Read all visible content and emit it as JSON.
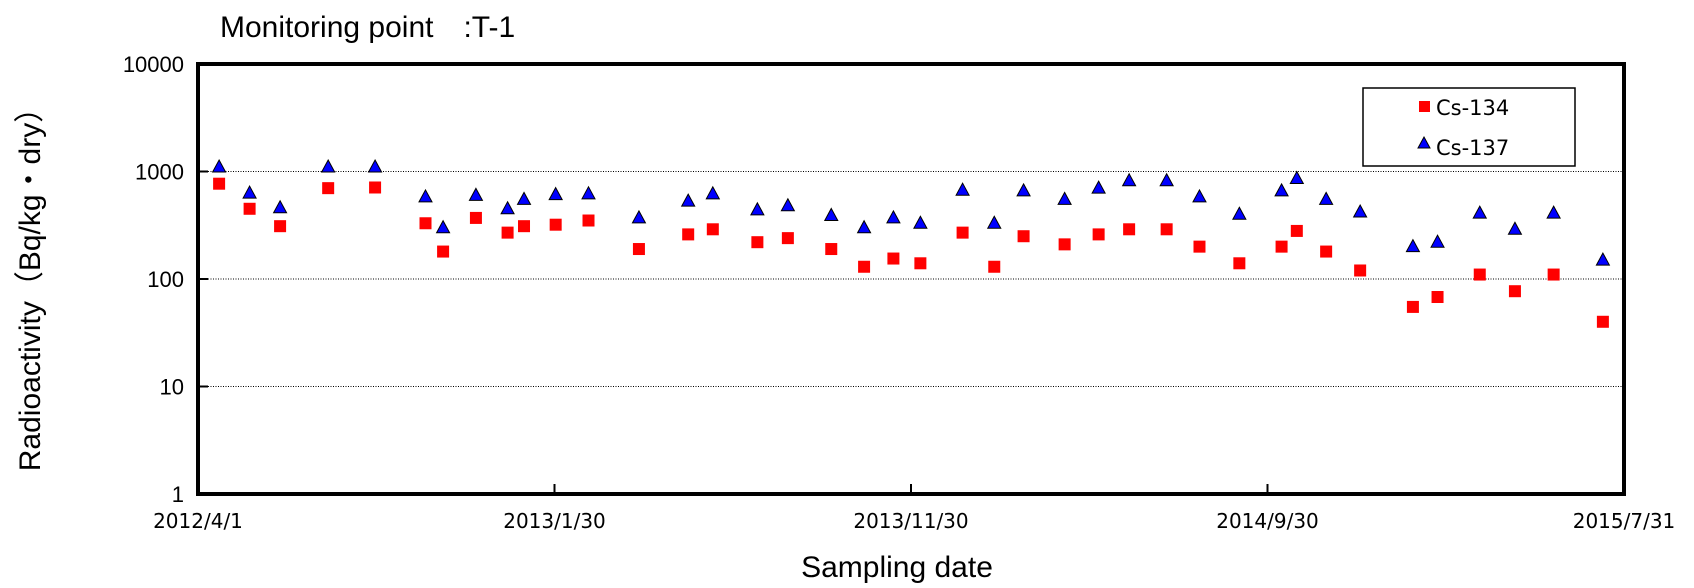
{
  "chart_data": {
    "type": "scatter",
    "title": "Monitoring point　:T-1",
    "xlabel": "Sampling date",
    "ylabel": "Radioactivity（Bq/kg・dry）",
    "x_axis": {
      "type": "date",
      "min": "2012-04-01",
      "max": "2015-07-31",
      "tick_values": [
        "2012-04-01",
        "2013-01-30",
        "2013-11-30",
        "2014-09-30",
        "2015-07-31"
      ],
      "tick_labels": [
        "2012/4/1",
        "2013/1/30",
        "2013/11/30",
        "2014/9/30",
        "2015/7/31"
      ]
    },
    "y_axis": {
      "scale": "log",
      "ylim": [
        1,
        10000
      ],
      "tick_values": [
        1,
        10,
        100,
        1000,
        10000
      ],
      "tick_labels": [
        "1",
        "10",
        "100",
        "1000",
        "10000"
      ],
      "grid": true
    },
    "legend": {
      "placement": "top-right"
    },
    "series": [
      {
        "name": "Cs-134",
        "marker": "square",
        "color": "#ff0000",
        "points": [
          {
            "x": "2012-04-19",
            "y": 770
          },
          {
            "x": "2012-05-15",
            "y": 450
          },
          {
            "x": "2012-06-10",
            "y": 310
          },
          {
            "x": "2012-07-21",
            "y": 700
          },
          {
            "x": "2012-08-30",
            "y": 710
          },
          {
            "x": "2012-10-12",
            "y": 330
          },
          {
            "x": "2012-10-27",
            "y": 180
          },
          {
            "x": "2012-11-24",
            "y": 370
          },
          {
            "x": "2012-12-21",
            "y": 270
          },
          {
            "x": "2013-01-04",
            "y": 310
          },
          {
            "x": "2013-01-31",
            "y": 320
          },
          {
            "x": "2013-02-28",
            "y": 350
          },
          {
            "x": "2013-04-12",
            "y": 190
          },
          {
            "x": "2013-05-24",
            "y": 260
          },
          {
            "x": "2013-06-14",
            "y": 290
          },
          {
            "x": "2013-07-22",
            "y": 220
          },
          {
            "x": "2013-08-17",
            "y": 240
          },
          {
            "x": "2013-09-23",
            "y": 190
          },
          {
            "x": "2013-10-21",
            "y": 130
          },
          {
            "x": "2013-11-15",
            "y": 155
          },
          {
            "x": "2013-12-08",
            "y": 140
          },
          {
            "x": "2014-01-13",
            "y": 270
          },
          {
            "x": "2014-02-09",
            "y": 130
          },
          {
            "x": "2014-03-06",
            "y": 250
          },
          {
            "x": "2014-04-10",
            "y": 210
          },
          {
            "x": "2014-05-09",
            "y": 260
          },
          {
            "x": "2014-06-04",
            "y": 290
          },
          {
            "x": "2014-07-06",
            "y": 290
          },
          {
            "x": "2014-08-03",
            "y": 200
          },
          {
            "x": "2014-09-06",
            "y": 140
          },
          {
            "x": "2014-10-12",
            "y": 200
          },
          {
            "x": "2014-10-25",
            "y": 280
          },
          {
            "x": "2014-11-19",
            "y": 180
          },
          {
            "x": "2014-12-18",
            "y": 120
          },
          {
            "x": "2015-02-01",
            "y": 55
          },
          {
            "x": "2015-02-22",
            "y": 68
          },
          {
            "x": "2015-03-30",
            "y": 110
          },
          {
            "x": "2015-04-29",
            "y": 77
          },
          {
            "x": "2015-06-01",
            "y": 110
          },
          {
            "x": "2015-07-13",
            "y": 40
          }
        ]
      },
      {
        "name": "Cs-137",
        "marker": "triangle",
        "color": "#0000ff",
        "points": [
          {
            "x": "2012-04-19",
            "y": 1100
          },
          {
            "x": "2012-05-15",
            "y": 630
          },
          {
            "x": "2012-06-10",
            "y": 460
          },
          {
            "x": "2012-07-21",
            "y": 1100
          },
          {
            "x": "2012-08-30",
            "y": 1100
          },
          {
            "x": "2012-10-12",
            "y": 580
          },
          {
            "x": "2012-10-27",
            "y": 300
          },
          {
            "x": "2012-11-24",
            "y": 600
          },
          {
            "x": "2012-12-21",
            "y": 450
          },
          {
            "x": "2013-01-04",
            "y": 550
          },
          {
            "x": "2013-01-31",
            "y": 610
          },
          {
            "x": "2013-02-28",
            "y": 620
          },
          {
            "x": "2013-04-12",
            "y": 370
          },
          {
            "x": "2013-05-24",
            "y": 530
          },
          {
            "x": "2013-06-14",
            "y": 620
          },
          {
            "x": "2013-07-22",
            "y": 440
          },
          {
            "x": "2013-08-17",
            "y": 480
          },
          {
            "x": "2013-09-23",
            "y": 390
          },
          {
            "x": "2013-10-21",
            "y": 300
          },
          {
            "x": "2013-11-15",
            "y": 370
          },
          {
            "x": "2013-12-08",
            "y": 330
          },
          {
            "x": "2014-01-13",
            "y": 670
          },
          {
            "x": "2014-02-09",
            "y": 330
          },
          {
            "x": "2014-03-06",
            "y": 660
          },
          {
            "x": "2014-04-10",
            "y": 550
          },
          {
            "x": "2014-05-09",
            "y": 700
          },
          {
            "x": "2014-06-04",
            "y": 820
          },
          {
            "x": "2014-07-06",
            "y": 820
          },
          {
            "x": "2014-08-03",
            "y": 580
          },
          {
            "x": "2014-09-06",
            "y": 400
          },
          {
            "x": "2014-10-12",
            "y": 660
          },
          {
            "x": "2014-10-25",
            "y": 860
          },
          {
            "x": "2014-11-19",
            "y": 550
          },
          {
            "x": "2014-12-18",
            "y": 420
          },
          {
            "x": "2015-02-01",
            "y": 200
          },
          {
            "x": "2015-02-22",
            "y": 220
          },
          {
            "x": "2015-03-30",
            "y": 410
          },
          {
            "x": "2015-04-29",
            "y": 290
          },
          {
            "x": "2015-06-01",
            "y": 410
          },
          {
            "x": "2015-07-13",
            "y": 150
          }
        ]
      }
    ]
  }
}
